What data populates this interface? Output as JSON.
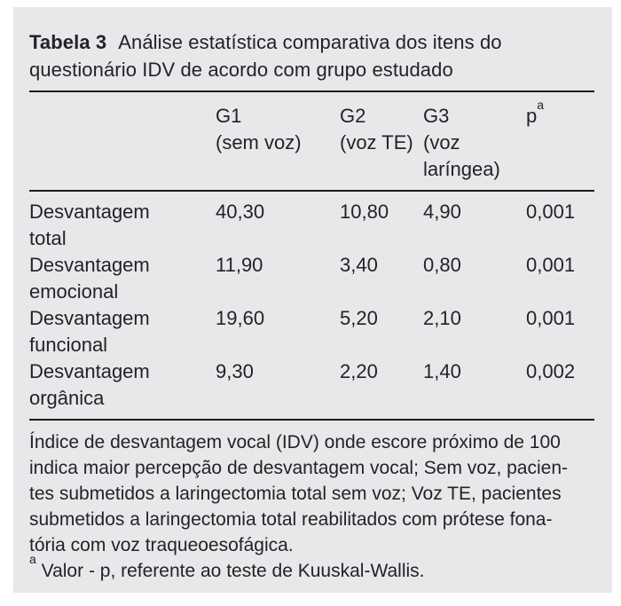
{
  "page": {
    "background": "#ffffff",
    "panel_background": "#e8e8ea",
    "text_color": "#232327",
    "rule_color": "#1c1c1c"
  },
  "table": {
    "tag": "Tabela 3",
    "caption_line1": "Análise estatística comparativa dos itens do",
    "caption_line2": "questionário IDV de acordo com grupo estudado",
    "header": {
      "g1": {
        "line1": "G1",
        "line2": "(sem voz)"
      },
      "g2": {
        "line1": "G2",
        "line2": "(voz TE)"
      },
      "g3": {
        "line1": "G3",
        "line2": "(voz",
        "line3": "laríngea)"
      },
      "p": {
        "label": "p",
        "sup": "a"
      }
    },
    "rows": [
      {
        "label_line1": "Desvantagem",
        "label_line2": "total",
        "g1": "40,30",
        "g2": "10,80",
        "g3": "4,90",
        "p": "0,001"
      },
      {
        "label_line1": "Desvantagem",
        "label_line2": "emocional",
        "g1": "11,90",
        "g2": "3,40",
        "g3": "0,80",
        "p": "0,001"
      },
      {
        "label_line1": "Desvantagem",
        "label_line2": "funcional",
        "g1": "19,60",
        "g2": "5,20",
        "g3": "2,10",
        "p": "0,001"
      },
      {
        "label_line1": "Desvantagem",
        "label_line2": "orgânica",
        "g1": "9,30",
        "g2": "2,20",
        "g3": "1,40",
        "p": "0,002"
      }
    ]
  },
  "footnotes": {
    "general_lines": [
      "Índice de desvantagem vocal (IDV) onde escore próximo de 100",
      "indica maior percepção de desvantagem vocal; Sem voz, pacien-",
      "tes submetidos a laringectomia total sem voz; Voz TE, pacientes",
      "submetidos a laringectomia total reabilitados com prótese fona-",
      "tória com voz traqueoesofágica."
    ],
    "marked": {
      "sup": "a",
      "text": "Valor - p, referente ao teste de Kuuskal-Wallis."
    }
  },
  "chart_data": {
    "type": "table",
    "title": "Tabela 3 — Análise estatística comparativa dos itens do questionário IDV de acordo com grupo estudado",
    "row_labels": [
      "Desvantagem total",
      "Desvantagem emocional",
      "Desvantagem funcional",
      "Desvantagem orgânica"
    ],
    "columns": [
      "G1 (sem voz)",
      "G2 (voz TE)",
      "G3 (voz laríngea)",
      "p"
    ],
    "values": [
      [
        40.3,
        10.8,
        4.9,
        0.001
      ],
      [
        11.9,
        3.4,
        0.8,
        0.001
      ],
      [
        19.6,
        5.2,
        2.1,
        0.001
      ],
      [
        9.3,
        2.2,
        1.4,
        0.002
      ]
    ]
  }
}
